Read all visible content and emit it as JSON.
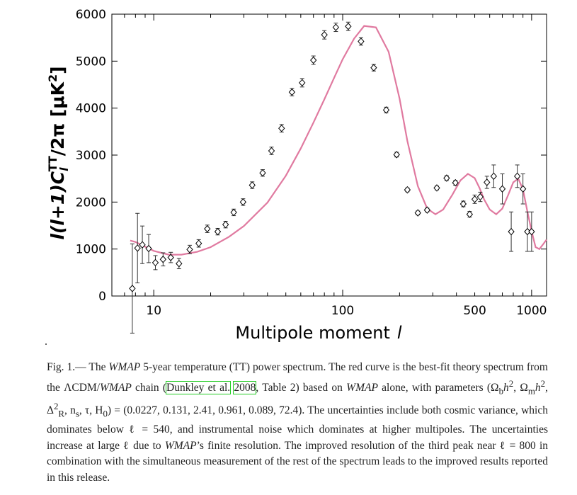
{
  "chart_data": {
    "type": "scatter",
    "xscale": "log",
    "xlim": [
      6,
      1200
    ],
    "ylim": [
      0,
      6000
    ],
    "xticks": [
      10,
      100,
      500,
      1000
    ],
    "xtick_labels": [
      "10",
      "100",
      "500",
      "1000"
    ],
    "yticks": [
      0,
      1000,
      2000,
      3000,
      4000,
      5000,
      6000
    ],
    "ytick_labels": [
      "0",
      "1000",
      "2000",
      "3000",
      "4000",
      "5000",
      "6000"
    ],
    "xlabel": "Multipole moment",
    "xlabel_symbol": "l",
    "ylabel": "l(l+1)C",
    "ylabel_sub": "l",
    "ylabel_sup": "TT",
    "ylabel_tail": "/2π [μK",
    "ylabel_tail_sup": "2",
    "ylabel_close": "]",
    "data_color": "#000000",
    "curve_color": "#e07aa0",
    "series": [
      {
        "type": "errorbar",
        "marker": "diamond",
        "x": [
          7.7,
          8.2,
          8.7,
          9.4,
          10.2,
          11.2,
          12.3,
          13.6,
          15.5,
          17.3,
          19.2,
          21.8,
          24.0,
          26.5,
          29.7,
          33.2,
          37.7,
          42.0,
          47.5,
          53.9,
          61.0,
          70.0,
          80.0,
          92.0,
          107,
          125,
          146,
          170,
          193,
          220,
          250,
          280,
          315,
          355,
          395,
          435,
          470,
          500,
          535,
          580,
          630,
          700,
          780,
          840,
          900,
          950,
          1000
        ],
        "y": [
          160,
          1020,
          1090,
          1010,
          710,
          780,
          820,
          690,
          990,
          1120,
          1430,
          1370,
          1520,
          1780,
          2000,
          2360,
          2620,
          3090,
          3570,
          4340,
          4540,
          5020,
          5560,
          5720,
          5740,
          5420,
          4860,
          3960,
          3010,
          2260,
          1770,
          1830,
          2300,
          2510,
          2410,
          1960,
          1740,
          2060,
          2110,
          2420,
          2550,
          2280,
          1370,
          2550,
          2280,
          1370,
          1370
        ],
        "yerr": [
          950,
          740,
          400,
          300,
          150,
          140,
          110,
          110,
          90,
          80,
          80,
          70,
          70,
          70,
          70,
          70,
          70,
          80,
          80,
          80,
          90,
          90,
          90,
          90,
          90,
          80,
          70,
          60,
          50,
          40,
          40,
          40,
          40,
          50,
          50,
          60,
          60,
          90,
          100,
          130,
          240,
          320,
          420,
          240,
          320,
          420,
          420
        ]
      },
      {
        "type": "line",
        "x": [
          7.5,
          8,
          9,
          10,
          12,
          14,
          17,
          20,
          25,
          30,
          40,
          50,
          60,
          70,
          80,
          90,
          100,
          115,
          130,
          150,
          175,
          200,
          220,
          250,
          280,
          310,
          340,
          380,
          420,
          460,
          500,
          530,
          560,
          600,
          650,
          700,
          750,
          800,
          850,
          900,
          950,
          1000,
          1050,
          1100,
          1150,
          1200
        ],
        "y": [
          1180,
          1150,
          1050,
          960,
          880,
          880,
          940,
          1040,
          1260,
          1490,
          1990,
          2560,
          3140,
          3690,
          4190,
          4640,
          5040,
          5480,
          5750,
          5720,
          5200,
          4200,
          3300,
          2340,
          1860,
          1740,
          1840,
          2150,
          2460,
          2600,
          2510,
          2300,
          2060,
          1840,
          1740,
          1860,
          2140,
          2420,
          2500,
          2270,
          1800,
          1380,
          1040,
          1000,
          1100,
          1200
        ]
      }
    ]
  },
  "caption": {
    "fig_label": "Fig.  1.",
    "dash": "— The ",
    "wmap1": "WMAP",
    "t1": " 5-year temperature (TT) power spectrum. The red curve is the best-fit theory spectrum from the ΛCDM/",
    "wmap2": "WMAP",
    "t2": " chain (",
    "cite_name": "Dunkley et al.",
    "cite_year": "2008",
    "t3": ", Table 2) based on ",
    "wmap3": "WMAP",
    "t4": " alone, with parameters (Ω",
    "sub_b": "b",
    "t5": "h",
    "sup2a": "2",
    "t6": ", Ω",
    "sub_m": "m",
    "t7": "h",
    "sup2b": "2",
    "t8": ", Δ",
    "sup2c": "2",
    "sub_R": "R",
    "t9": ", n",
    "sub_s": "s",
    "t10": ", τ, H",
    "sub_0": "0",
    "t11": ") = (0.0227, 0.131, 2.41, 0.961, 0.089, 72.4). The uncertainties include both cosmic variance, which dominates below ℓ = 540, and instrumental noise which dominates at higher multipoles. The uncertainties increase at large ℓ due to ",
    "wmap4": "WMAP",
    "t12": "’s finite resolution. The improved resolution of the third peak near ℓ = 800 in combination with the simultaneous measurement of the rest of the spectrum leads to the improved results reported in this release."
  }
}
